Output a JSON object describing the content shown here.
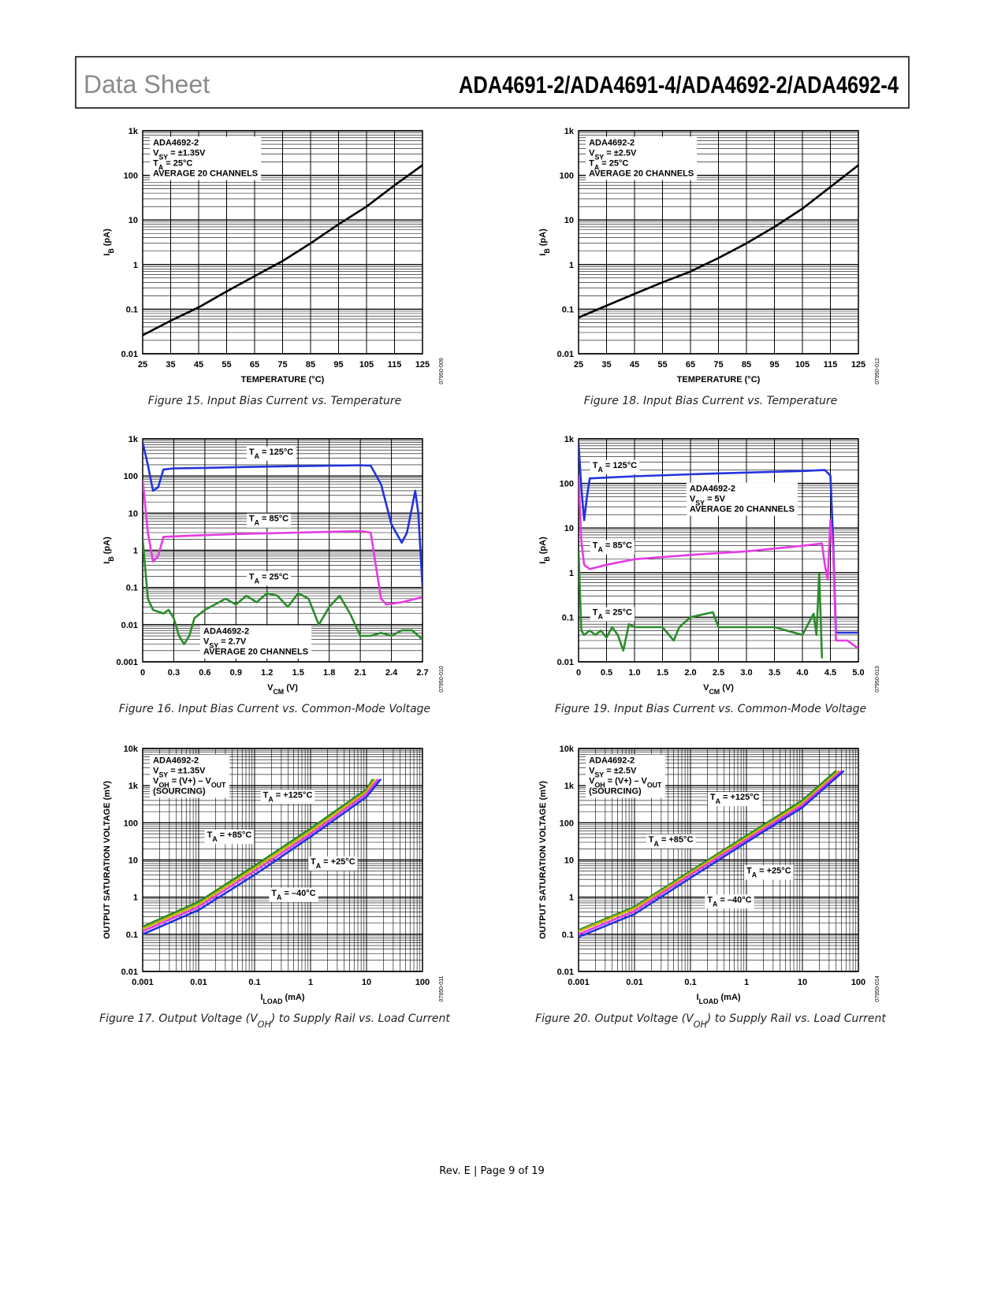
{
  "header": {
    "left": "Data Sheet",
    "right": "ADA4691-2/ADA4691-4/ADA4692-2/ADA4692-4"
  },
  "chart_data": [
    {
      "type": "line",
      "ylog": true,
      "grid": true,
      "caption": [
        "Figure 15. Input Bias Current vs. Temperature"
      ],
      "code": "07950-009",
      "xlabel": [
        "TEMPERATURE (°C)"
      ],
      "ylabel": [
        "I",
        "B",
        " (pA)"
      ],
      "note": [
        [
          "ADA4692-2"
        ],
        [
          "V",
          "SY",
          " = ±1.35V"
        ],
        [
          "T",
          "A",
          " = 25°C"
        ],
        [
          "AVERAGE 20 CHANNELS"
        ]
      ],
      "xlim": [
        25,
        125
      ],
      "xticks": [
        25,
        35,
        45,
        55,
        65,
        75,
        85,
        95,
        105,
        115,
        125
      ],
      "ylim": [
        0.01,
        1000
      ],
      "yticks": [
        0.01,
        0.1,
        1,
        10,
        100,
        {
          "value": 1000,
          "label": "1k"
        }
      ],
      "series": [
        {
          "color": "#000000",
          "x": [
            25,
            35,
            45,
            55,
            65,
            75,
            85,
            95,
            105,
            115,
            125
          ],
          "values": [
            0.026,
            0.055,
            0.11,
            0.25,
            0.55,
            1.2,
            3,
            8,
            20,
            60,
            170
          ]
        }
      ]
    },
    {
      "type": "line",
      "ylog": true,
      "grid": true,
      "caption": [
        "Figure 16. Input Bias Current vs. Common-Mode Voltage"
      ],
      "code": "07950-010",
      "xlabel": [
        "V",
        "CM",
        " (V)"
      ],
      "ylabel": [
        "I",
        "B",
        " (pA)"
      ],
      "note": [
        [
          "ADA4692-2"
        ],
        [
          "V",
          "SY",
          " = 2.7V"
        ],
        [
          "AVERAGE 20 CHANNELS"
        ]
      ],
      "annotations": [
        [
          "T",
          "A",
          " = 125°C"
        ],
        [
          "T",
          "A",
          " = 85°C"
        ],
        [
          "T",
          "A",
          " = 25°C"
        ]
      ],
      "xlim": [
        0,
        2.7
      ],
      "xticks": [
        0,
        0.3,
        0.6,
        0.9,
        1.2,
        1.5,
        1.8,
        2.1,
        2.4,
        2.7
      ],
      "ylim": [
        0.001,
        1000
      ],
      "yticks": [
        0.001,
        0.01,
        0.1,
        1,
        10,
        100,
        {
          "value": 1000,
          "label": "1k"
        }
      ],
      "series": [
        {
          "color": "#2233dd",
          "x": [
            0,
            0.05,
            0.1,
            0.15,
            0.2,
            0.3,
            0.6,
            1.0,
            1.5,
            2.1,
            2.2,
            2.3,
            2.4,
            2.5,
            2.55,
            2.6,
            2.63,
            2.66,
            2.7
          ],
          "values": [
            800,
            200,
            40,
            50,
            150,
            160,
            165,
            175,
            185,
            195,
            190,
            60,
            5,
            1.6,
            3,
            15,
            40,
            10,
            0.1
          ]
        },
        {
          "color": "#e53be5",
          "x": [
            0,
            0.05,
            0.1,
            0.15,
            0.2,
            0.5,
            1.0,
            1.5,
            2.1,
            2.2,
            2.3,
            2.35,
            2.5,
            2.7
          ],
          "values": [
            80,
            3,
            0.5,
            0.7,
            2.3,
            2.5,
            2.8,
            3,
            3.3,
            3,
            0.05,
            0.035,
            0.04,
            0.055
          ]
        },
        {
          "color": "#2a8c2a",
          "x": [
            0,
            0.05,
            0.1,
            0.2,
            0.25,
            0.3,
            0.35,
            0.4,
            0.45,
            0.5,
            0.6,
            0.8,
            0.9,
            1.0,
            1.1,
            1.2,
            1.3,
            1.4,
            1.5,
            1.6,
            1.7,
            1.8,
            1.9,
            2.0,
            2.1,
            2.2,
            2.3,
            2.4,
            2.5,
            2.6,
            2.7
          ],
          "values": [
            2,
            0.05,
            0.025,
            0.02,
            0.025,
            0.015,
            0.005,
            0.003,
            0.005,
            0.015,
            0.025,
            0.05,
            0.035,
            0.06,
            0.04,
            0.07,
            0.06,
            0.03,
            0.07,
            0.05,
            0.01,
            0.03,
            0.06,
            0.02,
            0.005,
            0.005,
            0.006,
            0.005,
            0.007,
            0.007,
            0.004
          ]
        }
      ]
    },
    {
      "type": "line",
      "ylog": true,
      "xlog": true,
      "grid": true,
      "caption": [
        "Figure 17. Output Voltage (V",
        "OH",
        ") to Supply Rail vs. Load Current"
      ],
      "code": "07950-011",
      "xlabel": [
        "I",
        "LOAD",
        " (mA)"
      ],
      "ylabel": [
        "OUTPUT SATURATION VOLTAGE (mV)"
      ],
      "note": [
        [
          "ADA4692-2"
        ],
        [
          "V",
          "SY",
          " = ±1.35V"
        ],
        [
          "V",
          "OH",
          " = (V+) – V",
          "OUT"
        ],
        [
          "(SOURCING)"
        ]
      ],
      "annotations": [
        [
          "T",
          "A",
          " = +125°C"
        ],
        [
          "T",
          "A",
          " = +85°C"
        ],
        [
          "T",
          "A",
          " = +25°C"
        ],
        [
          "T",
          "A",
          " = –40°C"
        ]
      ],
      "xlim": [
        0.001,
        100
      ],
      "xticks": [
        0.001,
        0.01,
        0.1,
        1,
        10,
        100
      ],
      "ylim": [
        0.01,
        10000
      ],
      "yticks": [
        0.01,
        0.1,
        1,
        10,
        100,
        {
          "value": 1000,
          "label": "1k"
        },
        {
          "value": 10000,
          "label": "10k"
        }
      ],
      "series": [
        {
          "color": "#2a8c2a",
          "x": [
            0.001,
            0.01,
            0.1,
            1,
            10,
            13
          ],
          "values": [
            0.16,
            0.75,
            7,
            70,
            800,
            1500
          ]
        },
        {
          "color": "#c8b400",
          "x": [
            0.001,
            0.01,
            0.1,
            1,
            10,
            14
          ],
          "values": [
            0.14,
            0.65,
            6,
            60,
            700,
            1500
          ]
        },
        {
          "color": "#e53be5",
          "x": [
            0.001,
            0.01,
            0.1,
            1,
            10,
            16
          ],
          "values": [
            0.12,
            0.55,
            5,
            50,
            600,
            1500
          ]
        },
        {
          "color": "#2233dd",
          "x": [
            0.001,
            0.01,
            0.1,
            1,
            10,
            18
          ],
          "values": [
            0.1,
            0.45,
            4,
            42,
            500,
            1500
          ]
        }
      ]
    },
    {
      "type": "line",
      "ylog": true,
      "grid": true,
      "caption": [
        "Figure 18. Input Bias Current vs. Temperature"
      ],
      "code": "07950-012",
      "xlabel": [
        "TEMPERATURE (°C)"
      ],
      "ylabel": [
        "I",
        "B",
        " (pA)"
      ],
      "note": [
        [
          "ADA4692-2"
        ],
        [
          "V",
          "SY",
          " = ±2.5V"
        ],
        [
          "T",
          "A",
          " = 25°C"
        ],
        [
          "AVERAGE 20 CHANNELS"
        ]
      ],
      "xlim": [
        25,
        125
      ],
      "xticks": [
        25,
        35,
        45,
        55,
        65,
        75,
        85,
        95,
        105,
        115,
        125
      ],
      "ylim": [
        0.01,
        1000
      ],
      "yticks": [
        0.01,
        0.1,
        1,
        10,
        100,
        {
          "value": 1000,
          "label": "1k"
        }
      ],
      "series": [
        {
          "color": "#000000",
          "x": [
            25,
            35,
            45,
            55,
            65,
            75,
            85,
            95,
            105,
            115,
            125
          ],
          "values": [
            0.065,
            0.12,
            0.22,
            0.4,
            0.7,
            1.4,
            3,
            7,
            18,
            55,
            170
          ]
        }
      ]
    },
    {
      "type": "line",
      "ylog": true,
      "grid": true,
      "caption": [
        "Figure 19. Input Bias Current vs. Common-Mode Voltage"
      ],
      "code": "07950-013",
      "xlabel": [
        "V",
        "CM",
        " (V)"
      ],
      "ylabel": [
        "I",
        "B",
        " (pA)"
      ],
      "note": [
        [
          "ADA4692-2"
        ],
        [
          "V",
          "SY",
          " = 5V"
        ],
        [
          "AVERAGE 20 CHANNELS"
        ]
      ],
      "annotations": [
        [
          "T",
          "A",
          " = 125°C"
        ],
        [
          "T",
          "A",
          " = 85°C"
        ],
        [
          "T",
          "A",
          " = 25°C"
        ]
      ],
      "xlim": [
        0,
        5
      ],
      "xticks": [
        0,
        0.5,
        {
          "value": 1,
          "label": "1.0"
        },
        1.5,
        {
          "value": 2,
          "label": "2.0"
        },
        2.5,
        {
          "value": 3,
          "label": "3.0"
        },
        3.5,
        {
          "value": 4,
          "label": "4.0"
        },
        4.5,
        {
          "value": 5,
          "label": "5.0"
        }
      ],
      "ylim": [
        0.01,
        1000
      ],
      "yticks": [
        0.01,
        0.1,
        1,
        10,
        100,
        {
          "value": 1000,
          "label": "1k"
        }
      ],
      "series": [
        {
          "color": "#2233dd",
          "x": [
            0,
            0.05,
            0.1,
            0.15,
            0.2,
            0.5,
            1,
            2,
            3,
            4,
            4.4,
            4.5,
            4.55,
            4.6,
            5
          ],
          "values": [
            800,
            80,
            15,
            50,
            130,
            135,
            145,
            160,
            175,
            190,
            200,
            150,
            5,
            0.045,
            0.045
          ]
        },
        {
          "color": "#e53be5",
          "x": [
            0,
            0.05,
            0.1,
            0.2,
            0.5,
            1,
            2,
            3,
            4,
            4.35,
            4.4,
            4.45,
            4.5,
            4.55,
            4.6,
            4.8,
            5
          ],
          "values": [
            150,
            5,
            1.5,
            1.2,
            1.5,
            2,
            2.5,
            3,
            4,
            4.5,
            1.5,
            0.7,
            15,
            3,
            0.03,
            0.03,
            0.02
          ]
        },
        {
          "color": "#2a8c2a",
          "x": [
            0,
            0.05,
            0.1,
            0.2,
            0.3,
            0.4,
            0.5,
            0.6,
            0.7,
            0.8,
            0.9,
            1,
            1.5,
            1.7,
            1.8,
            2.0,
            2.4,
            2.5,
            3,
            3.5,
            4,
            4.2,
            4.25,
            4.3,
            4.35
          ],
          "values": [
            3,
            0.05,
            0.04,
            0.05,
            0.04,
            0.05,
            0.035,
            0.06,
            0.04,
            0.018,
            0.07,
            0.06,
            0.06,
            0.03,
            0.06,
            0.1,
            0.13,
            0.06,
            0.06,
            0.06,
            0.04,
            0.12,
            0.04,
            0.95,
            0.012
          ]
        }
      ]
    },
    {
      "type": "line",
      "ylog": true,
      "xlog": true,
      "grid": true,
      "caption": [
        "Figure 20. Output Voltage (V",
        "OH",
        ") to Supply Rail vs. Load Current"
      ],
      "code": "07950-014",
      "xlabel": [
        "I",
        "LOAD",
        " (mA)"
      ],
      "ylabel": [
        "OUTPUT SATURATION VOLTAGE (mV)"
      ],
      "note": [
        [
          "ADA4692-2"
        ],
        [
          "V",
          "SY",
          " = ±2.5V"
        ],
        [
          "V",
          "OH",
          " = (V+) – V",
          "OUT"
        ],
        [
          "(SOURCING)"
        ]
      ],
      "annotations": [
        [
          "T",
          "A",
          " = +125°C"
        ],
        [
          "T",
          "A",
          " = +85°C"
        ],
        [
          "T",
          "A",
          " = +25°C"
        ],
        [
          "T",
          "A",
          " = –40°C"
        ]
      ],
      "xlim": [
        0.001,
        100
      ],
      "xticks": [
        0.001,
        0.01,
        0.1,
        1,
        10,
        100
      ],
      "ylim": [
        0.01,
        10000
      ],
      "yticks": [
        0.01,
        0.1,
        1,
        10,
        100,
        {
          "value": 1000,
          "label": "1k"
        },
        {
          "value": 10000,
          "label": "10k"
        }
      ],
      "series": [
        {
          "color": "#2a8c2a",
          "x": [
            0.001,
            0.01,
            0.1,
            1,
            10,
            40
          ],
          "values": [
            0.13,
            0.55,
            5,
            45,
            400,
            2500
          ]
        },
        {
          "color": "#c8b400",
          "x": [
            0.001,
            0.01,
            0.1,
            1,
            10,
            45
          ],
          "values": [
            0.12,
            0.5,
            4.5,
            40,
            350,
            2500
          ]
        },
        {
          "color": "#e53be5",
          "x": [
            0.001,
            0.01,
            0.1,
            1,
            10,
            50
          ],
          "values": [
            0.1,
            0.42,
            4,
            35,
            300,
            2500
          ]
        },
        {
          "color": "#2233dd",
          "x": [
            0.001,
            0.01,
            0.1,
            1,
            10,
            55
          ],
          "values": [
            0.085,
            0.35,
            3.3,
            30,
            260,
            2500
          ]
        }
      ]
    }
  ],
  "footer": "Rev. E | Page 9 of 19"
}
